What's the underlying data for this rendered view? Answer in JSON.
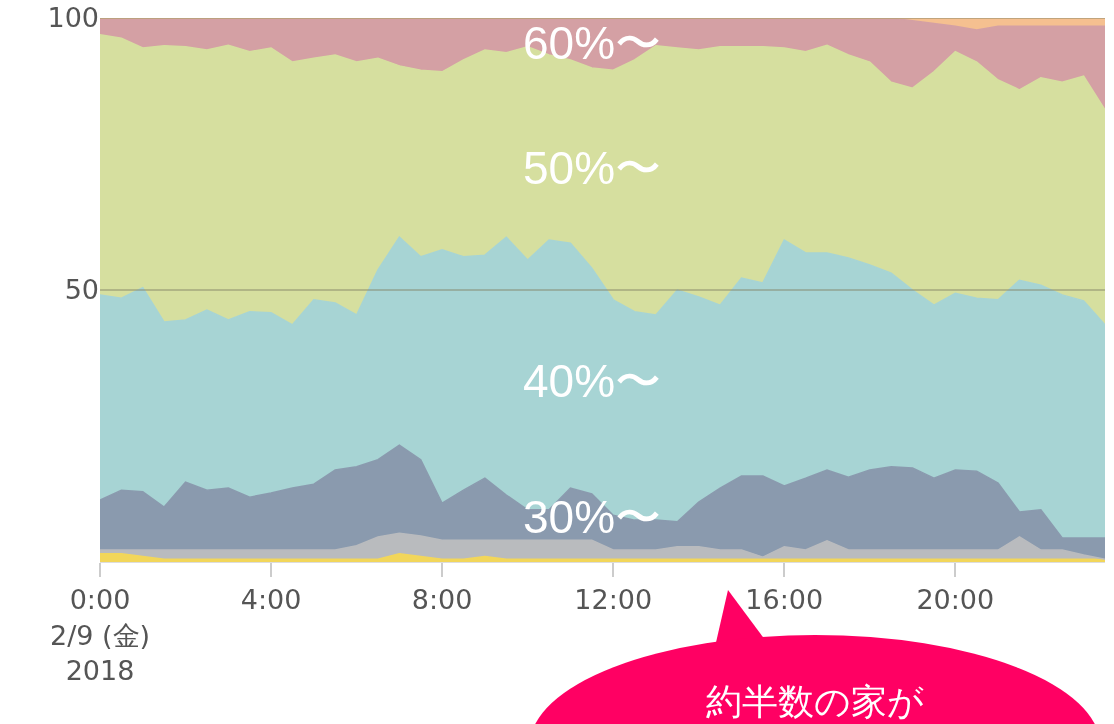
{
  "chart_data": {
    "type": "area",
    "stacked": true,
    "x": [
      "2018-02-09T00:00",
      "2018-02-09T00:30",
      "2018-02-09T01:00",
      "2018-02-09T01:30",
      "2018-02-09T02:00",
      "2018-02-09T02:30",
      "2018-02-09T03:00",
      "2018-02-09T03:30",
      "2018-02-09T04:00",
      "2018-02-09T04:30",
      "2018-02-09T05:00",
      "2018-02-09T05:30",
      "2018-02-09T06:00",
      "2018-02-09T06:30",
      "2018-02-09T07:00",
      "2018-02-09T07:30",
      "2018-02-09T08:00",
      "2018-02-09T08:30",
      "2018-02-09T09:00",
      "2018-02-09T09:30",
      "2018-02-09T10:00",
      "2018-02-09T10:30",
      "2018-02-09T11:00",
      "2018-02-09T11:30",
      "2018-02-09T12:00",
      "2018-02-09T12:30",
      "2018-02-09T13:00",
      "2018-02-09T13:30",
      "2018-02-09T14:00",
      "2018-02-09T14:30",
      "2018-02-09T15:00",
      "2018-02-09T15:30",
      "2018-02-09T16:00",
      "2018-02-09T16:30",
      "2018-02-09T17:00",
      "2018-02-09T17:30",
      "2018-02-09T18:00",
      "2018-02-09T18:30",
      "2018-02-09T19:00",
      "2018-02-09T19:30",
      "2018-02-09T20:00",
      "2018-02-09T20:30",
      "2018-02-09T21:00",
      "2018-02-09T21:30",
      "2018-02-09T22:00",
      "2018-02-09T22:30",
      "2018-02-09T23:00",
      "2018-02-09T23:30"
    ],
    "series": [
      {
        "color": "#f2d65a",
        "values": [
          1.5,
          1.5,
          1.0,
          0.5,
          0.5,
          0.5,
          0.5,
          0.5,
          0.5,
          0.5,
          0.5,
          0.5,
          0.5,
          0.5,
          1.5,
          1.0,
          0.5,
          0.5,
          1.0,
          0.5,
          0.5,
          0.5,
          0.5,
          0.5,
          0.5,
          0.5,
          0.5,
          0.5,
          0.5,
          0.5,
          0.5,
          0.5,
          0.5,
          0.5,
          0.5,
          0.5,
          0.5,
          0.5,
          0.5,
          0.5,
          0.5,
          0.5,
          0.5,
          0.5,
          0.5,
          0.5,
          0.5,
          0.5
        ]
      },
      {
        "color": "#b9bbbe",
        "values": [
          0.7,
          0.7,
          1.2,
          1.7,
          1.7,
          1.7,
          1.7,
          1.7,
          1.7,
          1.7,
          1.7,
          1.7,
          2.5,
          4.1,
          3.8,
          3.8,
          3.5,
          3.5,
          3.0,
          3.5,
          3.5,
          3.5,
          3.5,
          3.5,
          1.7,
          1.7,
          1.7,
          2.3,
          2.3,
          1.7,
          1.7,
          0.4,
          2.3,
          1.7,
          3.4,
          1.7,
          1.7,
          1.7,
          1.7,
          1.7,
          1.7,
          1.7,
          1.7,
          4.1,
          1.7,
          1.7,
          0.8,
          0.0
        ]
      },
      {
        "name": "30%〜",
        "color": "#8a9aae",
        "values": [
          9.2,
          11.0,
          10.7,
          7.9,
          12.5,
          11.0,
          11.4,
          9.7,
          10.5,
          11.4,
          12.1,
          14.7,
          14.5,
          14.2,
          16.2,
          14.0,
          6.8,
          9.2,
          11.4,
          8.3,
          5.6,
          5.6,
          9.6,
          8.5,
          6.4,
          5.5,
          5.5,
          4.6,
          8.2,
          11.4,
          13.6,
          14.9,
          11.2,
          13.2,
          13.0,
          13.4,
          14.7,
          15.3,
          15.1,
          13.2,
          14.7,
          14.5,
          12.3,
          4.6,
          7.4,
          2.2,
          3.1,
          3.9
        ]
      },
      {
        "name": "40%〜",
        "color": "#a7d4d4",
        "values": [
          37.7,
          35.3,
          37.5,
          34.0,
          29.8,
          33.1,
          30.9,
          34.1,
          33.1,
          30.0,
          33.9,
          30.7,
          27.9,
          34.9,
          38.2,
          37.3,
          46.6,
          42.9,
          41.0,
          47.4,
          45.9,
          49.6,
          45.0,
          41.5,
          39.6,
          38.3,
          37.7,
          42.6,
          37.7,
          33.6,
          36.4,
          35.5,
          45.2,
          41.4,
          39.9,
          40.3,
          37.7,
          35.6,
          32.7,
          31.8,
          32.5,
          31.8,
          33.7,
          42.6,
          41.3,
          44.7,
          43.6,
          39.2
        ]
      },
      {
        "name": "50%〜",
        "color": "#d6df9f",
        "values": [
          47.8,
          47.8,
          44.1,
          50.8,
          50.2,
          47.8,
          50.5,
          47.8,
          48.7,
          48.3,
          44.4,
          45.6,
          46.5,
          38.9,
          31.5,
          34.3,
          32.7,
          36.2,
          37.7,
          33.9,
          39.2,
          34.0,
          33.7,
          36.8,
          42.2,
          46.3,
          49.5,
          44.5,
          45.4,
          47.5,
          42.5,
          43.4,
          35.3,
          37.0,
          38.2,
          37.3,
          37.3,
          35.1,
          37.1,
          42.9,
          44.4,
          43.4,
          40.4,
          35.0,
          38.1,
          39.1,
          41.3,
          39.5
        ]
      },
      {
        "name": "60%〜",
        "color": "#d4a0a4",
        "values": [
          3.1,
          3.7,
          5.5,
          5.1,
          5.3,
          5.9,
          5.0,
          6.2,
          5.5,
          8.1,
          7.4,
          6.8,
          8.1,
          7.4,
          8.8,
          9.6,
          9.9,
          7.7,
          5.9,
          6.4,
          5.3,
          6.8,
          7.7,
          9.2,
          9.6,
          7.7,
          5.1,
          5.5,
          5.9,
          5.3,
          5.3,
          5.3,
          5.5,
          6.2,
          5.0,
          6.8,
          8.1,
          11.8,
          12.4,
          8.9,
          4.7,
          5.9,
          9.9,
          11.7,
          9.5,
          10.3,
          9.2,
          15.4
        ]
      },
      {
        "color": "#f5c090",
        "values": [
          0,
          0,
          0,
          0,
          0,
          0,
          0,
          0,
          0,
          0,
          0,
          0,
          0,
          0,
          0,
          0,
          0,
          0,
          0,
          0,
          0,
          0,
          0,
          0,
          0,
          0,
          0,
          0,
          0,
          0,
          0,
          0,
          0,
          0,
          0,
          0,
          0,
          0,
          0.5,
          1.0,
          1.5,
          2.2,
          1.5,
          1.5,
          1.5,
          1.5,
          1.5,
          1.5
        ]
      }
    ],
    "xlim": [
      "2018-02-09T00:00",
      "2018-02-09T23:30"
    ],
    "xticks": [
      {
        "value": "2018-02-09T00:00",
        "label": "0:00\n2/9 (金)\n2018"
      },
      {
        "value": "2018-02-09T04:00",
        "label": "4:00"
      },
      {
        "value": "2018-02-09T08:00",
        "label": "8:00"
      },
      {
        "value": "2018-02-09T12:00",
        "label": "12:00"
      },
      {
        "value": "2018-02-09T16:00",
        "label": "16:00"
      },
      {
        "value": "2018-02-09T20:00",
        "label": "20:00"
      }
    ],
    "ylim": [
      0,
      100
    ],
    "yticks": [
      50,
      100
    ],
    "grid": "y",
    "legend": false,
    "marker": "none",
    "annotations": [
      "約半数の家が"
    ]
  }
}
